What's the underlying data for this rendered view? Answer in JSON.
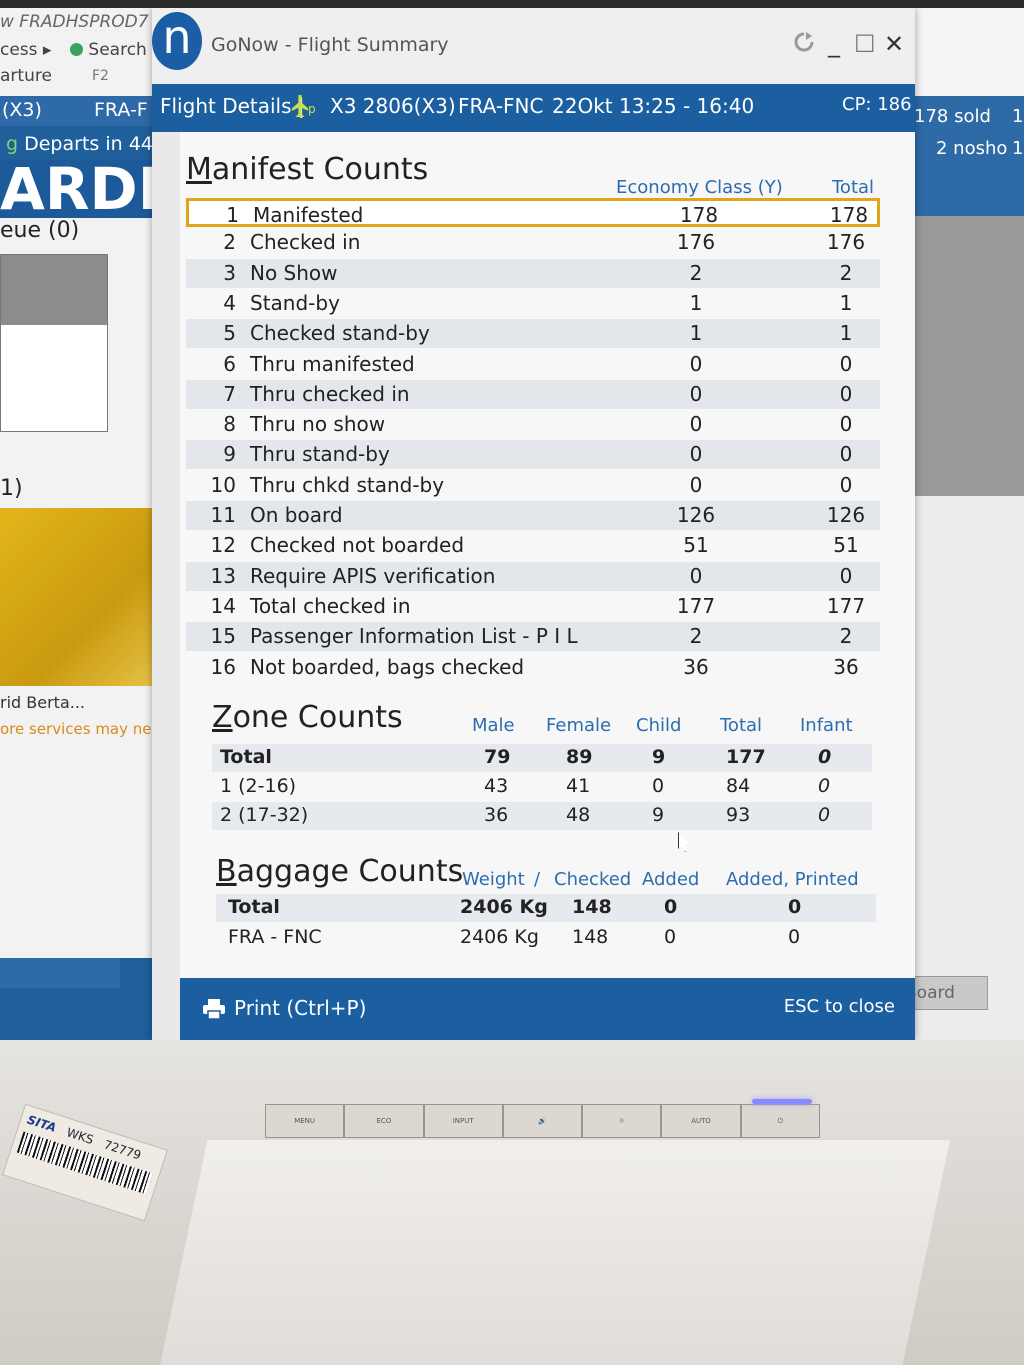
{
  "background_app": {
    "left_lines": [
      {
        "text": "w  FRADHSPROD7",
        "y": 14
      },
      {
        "text": "cess ▸",
        "y": 40
      },
      {
        "text": "Search",
        "y": 40
      },
      {
        "text": "arture",
        "y": 66
      },
      {
        "text": "F2",
        "y": 66
      }
    ],
    "flight_code": "(X3)",
    "route_partial": "FRA-F",
    "departs": "Departs in 44",
    "big_text": "ARDIN",
    "queue": "eue  (0)",
    "one": "1)",
    "passenger_name": "rid Berta...",
    "services_note": "ore services may need",
    "right_sold": "178 sold",
    "right_noshow": "2 nosho",
    "right_one_a": "1",
    "right_one_b": "1",
    "board_button": "Board"
  },
  "window": {
    "title": "GoNow - Flight Summary",
    "logo_letter": "n",
    "refresh_icon": "refresh-icon",
    "min": "_",
    "max": "☐",
    "close": "✕"
  },
  "flight_details": {
    "label": "Flight Details |",
    "flight": "X3 2806(X3)",
    "route": "FRA-FNC",
    "schedule": "22Okt 13:25 - 16:40",
    "cp": "CP: 186"
  },
  "manifest": {
    "title": "Manifest Counts",
    "col_class": "Economy Class (Y)",
    "col_total": "Total",
    "rows": [
      {
        "num": "1",
        "label": "Manifested",
        "economy": "178",
        "total": "178"
      },
      {
        "num": "2",
        "label": "Checked in",
        "economy": "176",
        "total": "176"
      },
      {
        "num": "3",
        "label": "No Show",
        "economy": "2",
        "total": "2"
      },
      {
        "num": "4",
        "label": "Stand-by",
        "economy": "1",
        "total": "1"
      },
      {
        "num": "5",
        "label": "Checked stand-by",
        "economy": "1",
        "total": "1"
      },
      {
        "num": "6",
        "label": "Thru manifested",
        "economy": "0",
        "total": "0"
      },
      {
        "num": "7",
        "label": "Thru checked in",
        "economy": "0",
        "total": "0"
      },
      {
        "num": "8",
        "label": "Thru no show",
        "economy": "0",
        "total": "0"
      },
      {
        "num": "9",
        "label": "Thru stand-by",
        "economy": "0",
        "total": "0"
      },
      {
        "num": "10",
        "label": "Thru chkd stand-by",
        "economy": "0",
        "total": "0"
      },
      {
        "num": "11",
        "label": "On board",
        "economy": "126",
        "total": "126"
      },
      {
        "num": "12",
        "label": "Checked not boarded",
        "economy": "51",
        "total": "51"
      },
      {
        "num": "13",
        "label": "Require APIS verification",
        "economy": "0",
        "total": "0"
      },
      {
        "num": "14",
        "label": "Total checked in",
        "economy": "177",
        "total": "177"
      },
      {
        "num": "15",
        "label": "Passenger Information List - P I L",
        "economy": "2",
        "total": "2"
      },
      {
        "num": "16",
        "label": "Not boarded, bags checked",
        "economy": "36",
        "total": "36"
      }
    ]
  },
  "zones": {
    "title": "Zone Counts",
    "headers": {
      "male": "Male",
      "female": "Female",
      "child": "Child",
      "total": "Total",
      "infant": "Infant"
    },
    "rows": [
      {
        "label": "Total",
        "male": "79",
        "female": "89",
        "child": "9",
        "total": "177",
        "infant": "0"
      },
      {
        "label": "1 (2-16)",
        "male": "43",
        "female": "41",
        "child": "0",
        "total": "84",
        "infant": "0"
      },
      {
        "label": "2 (17-32)",
        "male": "36",
        "female": "48",
        "child": "9",
        "total": "93",
        "infant": "0"
      }
    ]
  },
  "baggage": {
    "title": "Baggage Counts",
    "headers": {
      "weight": "Weight",
      "slash": "/",
      "checked": "Checked",
      "added": "Added",
      "added_printed": "Added, Printed"
    },
    "rows": [
      {
        "label": "Total",
        "weight": "2406 Kg",
        "checked": "148",
        "added": "0",
        "added_printed": "0"
      },
      {
        "label": "FRA - FNC",
        "weight": "2406 Kg",
        "checked": "148",
        "added": "0",
        "added_printed": "0"
      }
    ]
  },
  "footer": {
    "print": "Print (Ctrl+P)",
    "esc": "ESC to close"
  },
  "monitor": {
    "buttons": [
      "MENU",
      "ECO",
      "INPUT",
      "🔊",
      "☼",
      "AUTO",
      "⏻"
    ],
    "sticker_brand": "SITA",
    "sticker_code": "72779",
    "sticker_wks": "WKS"
  },
  "colors": {
    "header_blue": "#1c5fa0",
    "column_header_blue": "#2c6db0",
    "selection_gold": "#e1a51c",
    "plane_icon": "#c7e04d"
  }
}
